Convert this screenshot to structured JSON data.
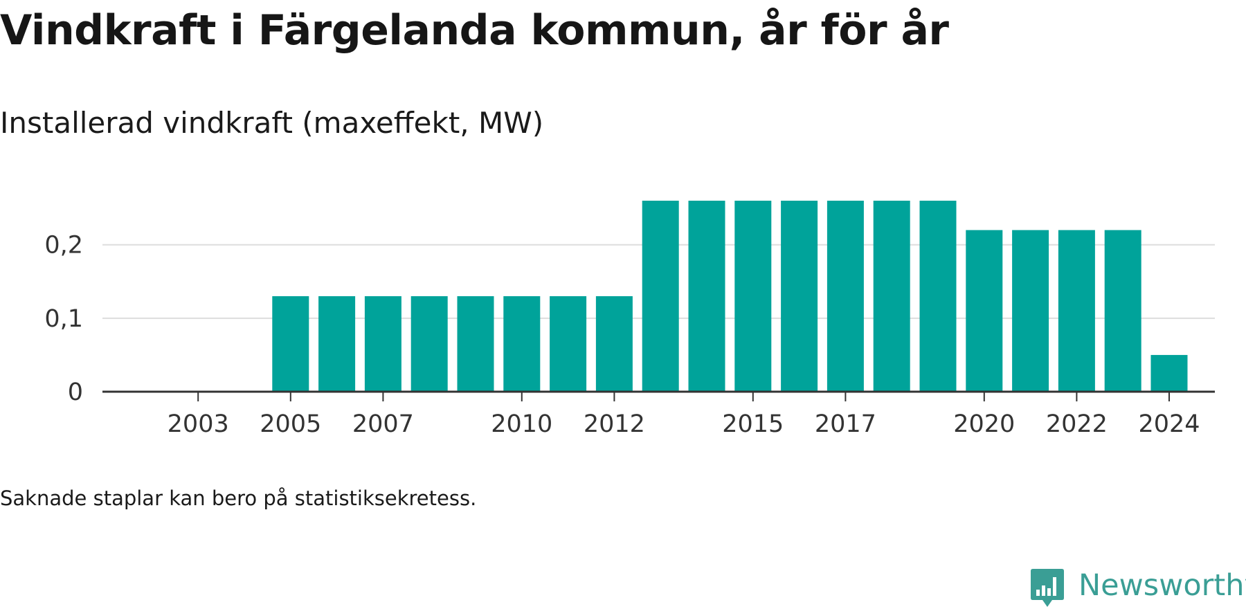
{
  "title": "Vindkraft i Färgelanda kommun, år för år",
  "subtitle": "Installerad vindkraft (maxeffekt, MW)",
  "footnote": "Saknade staplar kan bero på statistiksekretess.",
  "brand": {
    "name": "Newsworthy",
    "icon": "newsworthy-logo-icon",
    "color": "#3a9e95"
  },
  "colors": {
    "bar": "#00a39a",
    "grid": "#dddddd",
    "axis": "#333333"
  },
  "chart_data": {
    "type": "bar",
    "title": "Vindkraft i Färgelanda kommun, år för år",
    "subtitle": "Installerad vindkraft (maxeffekt, MW)",
    "xlabel": "",
    "ylabel": "",
    "categories": [
      2002,
      2003,
      2004,
      2005,
      2006,
      2007,
      2008,
      2009,
      2010,
      2011,
      2012,
      2013,
      2014,
      2015,
      2016,
      2017,
      2018,
      2019,
      2020,
      2021,
      2022,
      2023,
      2024
    ],
    "values": [
      0,
      0,
      0,
      0.13,
      0.13,
      0.13,
      0.13,
      0.13,
      0.13,
      0.13,
      0.13,
      0.26,
      0.26,
      0.26,
      0.26,
      0.26,
      0.26,
      0.26,
      0.22,
      0.22,
      0.22,
      0.22,
      0.05
    ],
    "x_tick_labels": [
      "2003",
      "2005",
      "2007",
      "2010",
      "2012",
      "2015",
      "2017",
      "2020",
      "2022",
      "2024"
    ],
    "y_ticks": [
      0,
      0.1,
      0.2
    ],
    "y_tick_labels": [
      "0",
      "0,1",
      "0,2"
    ],
    "ylim": [
      0,
      0.26
    ],
    "grid": true,
    "legend": "none"
  }
}
